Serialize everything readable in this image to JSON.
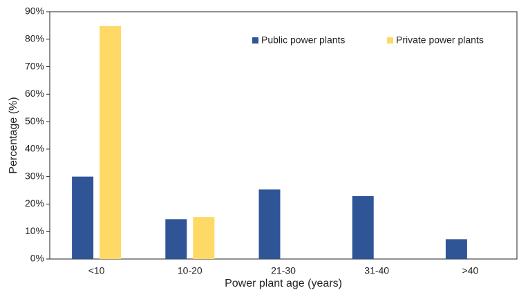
{
  "chart_data": {
    "type": "bar",
    "xlabel": "Power plant age (years)",
    "ylabel": "Percentage (%)",
    "categories": [
      "<10",
      "10-20",
      "21-30",
      "31-40",
      ">40"
    ],
    "series": [
      {
        "name": "Public power plants",
        "color": "#2f5597",
        "values": [
          30.0,
          14.5,
          25.3,
          22.9,
          7.2
        ]
      },
      {
        "name": "Private power plants",
        "color": "#ffd966",
        "values": [
          84.8,
          15.3,
          0,
          0,
          0
        ]
      }
    ],
    "ylim": [
      0,
      90
    ],
    "yticks": [
      {
        "value": 0,
        "label": "0%"
      },
      {
        "value": 10,
        "label": "10%"
      },
      {
        "value": 20,
        "label": "20%"
      },
      {
        "value": 30,
        "label": "30%"
      },
      {
        "value": 40,
        "label": "40%"
      },
      {
        "value": 50,
        "label": "50%"
      },
      {
        "value": 60,
        "label": "60%"
      },
      {
        "value": 70,
        "label": "70%"
      },
      {
        "value": 80,
        "label": "80%"
      },
      {
        "value": 90,
        "label": "90%"
      }
    ],
    "legend": "top-right"
  }
}
